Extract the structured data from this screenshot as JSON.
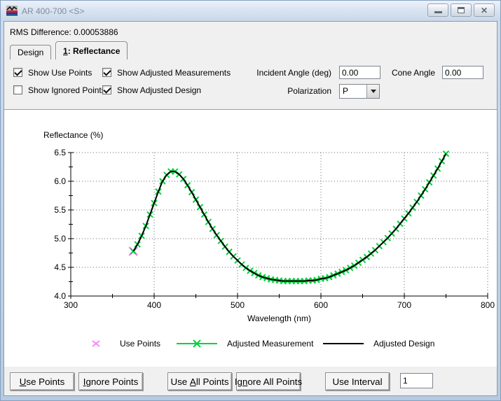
{
  "window": {
    "title": "AR 400-700 <S>",
    "icon": "thin-film-design-document-icon"
  },
  "rms_line": "RMS Difference: 0.00053886",
  "tabs": {
    "design": {
      "label": "Design"
    },
    "reflectance": {
      "pre": "",
      "under": "1",
      "post": ": Reflectance"
    }
  },
  "controls": {
    "show_use_points": {
      "label": "Show Use Points",
      "checked": true
    },
    "show_ignored_points": {
      "label": "Show Ignored Points",
      "checked": false
    },
    "show_adjusted_measurements": {
      "label": "Show Adjusted Measurements",
      "checked": true
    },
    "show_adjusted_design": {
      "label": "Show Adjusted Design",
      "checked": true
    },
    "incident_angle": {
      "label": "Incident Angle (deg)",
      "value": "0.00"
    },
    "cone_angle": {
      "label": "Cone Angle",
      "value": "0.00"
    },
    "polarization": {
      "label": "Polarization",
      "value": "P"
    }
  },
  "chart_data": {
    "type": "line",
    "title": "",
    "xlabel": "Wavelength (nm)",
    "ylabel": "Reflectance (%)",
    "xlim": [
      300,
      800
    ],
    "ylim": [
      4.0,
      6.5
    ],
    "x_ticks": [
      300,
      400,
      500,
      600,
      700,
      800
    ],
    "y_ticks": [
      4.0,
      4.5,
      5.0,
      5.5,
      6.0,
      6.5
    ],
    "grid": "dotted",
    "legend_position": "bottom",
    "x": [
      375,
      380,
      385,
      390,
      395,
      400,
      405,
      410,
      415,
      420,
      425,
      430,
      435,
      440,
      445,
      450,
      455,
      460,
      465,
      470,
      475,
      480,
      485,
      490,
      495,
      500,
      505,
      510,
      515,
      520,
      525,
      530,
      535,
      540,
      545,
      550,
      555,
      560,
      565,
      570,
      575,
      580,
      585,
      590,
      595,
      600,
      605,
      610,
      615,
      620,
      625,
      630,
      635,
      640,
      645,
      650,
      655,
      660,
      665,
      670,
      675,
      680,
      685,
      690,
      695,
      700,
      705,
      710,
      715,
      720,
      725,
      730,
      735,
      740,
      745,
      750
    ],
    "series": [
      {
        "name": "Adjusted Measurement",
        "color": "#00d23c",
        "marker": "x",
        "values": [
          4.78,
          4.9,
          5.05,
          5.22,
          5.42,
          5.62,
          5.82,
          6.0,
          6.11,
          6.17,
          6.17,
          6.12,
          6.04,
          5.93,
          5.81,
          5.68,
          5.55,
          5.42,
          5.29,
          5.17,
          5.06,
          4.96,
          4.86,
          4.77,
          4.69,
          4.62,
          4.55,
          4.49,
          4.44,
          4.4,
          4.36,
          4.33,
          4.31,
          4.29,
          4.28,
          4.27,
          4.26,
          4.26,
          4.26,
          4.26,
          4.26,
          4.26,
          4.27,
          4.27,
          4.28,
          4.3,
          4.31,
          4.33,
          4.36,
          4.39,
          4.42,
          4.45,
          4.49,
          4.53,
          4.58,
          4.63,
          4.68,
          4.74,
          4.8,
          4.87,
          4.94,
          5.01,
          5.09,
          5.17,
          5.26,
          5.35,
          5.44,
          5.54,
          5.64,
          5.75,
          5.86,
          5.98,
          6.1,
          6.22,
          6.35,
          6.48
        ]
      },
      {
        "name": "Adjusted Design",
        "color": "#000000",
        "marker": "none",
        "values": [
          4.78,
          4.9,
          5.05,
          5.22,
          5.42,
          5.62,
          5.82,
          6.0,
          6.11,
          6.17,
          6.17,
          6.12,
          6.04,
          5.93,
          5.81,
          5.68,
          5.55,
          5.42,
          5.29,
          5.17,
          5.06,
          4.96,
          4.86,
          4.77,
          4.69,
          4.62,
          4.55,
          4.49,
          4.44,
          4.4,
          4.36,
          4.33,
          4.31,
          4.29,
          4.28,
          4.27,
          4.26,
          4.26,
          4.26,
          4.26,
          4.26,
          4.26,
          4.27,
          4.27,
          4.28,
          4.3,
          4.31,
          4.33,
          4.36,
          4.39,
          4.42,
          4.45,
          4.49,
          4.53,
          4.58,
          4.63,
          4.68,
          4.74,
          4.8,
          4.87,
          4.94,
          5.01,
          5.09,
          5.17,
          5.26,
          5.35,
          5.44,
          5.54,
          5.64,
          5.75,
          5.86,
          5.98,
          6.1,
          6.22,
          6.35,
          6.48
        ]
      }
    ],
    "legend": [
      {
        "label": "Use Points",
        "marker": "x",
        "color": "#ff80ff"
      },
      {
        "label": "Adjusted Measurement",
        "marker": "line-x",
        "color": "#00d23c"
      },
      {
        "label": "Adjusted Design",
        "marker": "line",
        "color": "#000000"
      }
    ]
  },
  "footer": {
    "use_points": {
      "pre": "",
      "under": "U",
      "post": "se Points"
    },
    "ignore_points": {
      "pre": "",
      "under": "I",
      "post": "gnore Points"
    },
    "use_all_points": {
      "pre": "Use ",
      "under": "A",
      "post": "ll Points"
    },
    "ignore_all_points": {
      "pre": "Ig",
      "under": "n",
      "post": "ore All Points"
    },
    "use_interval": {
      "pre": "Use Interval",
      "under": "",
      "post": ""
    },
    "interval_value": "1"
  }
}
